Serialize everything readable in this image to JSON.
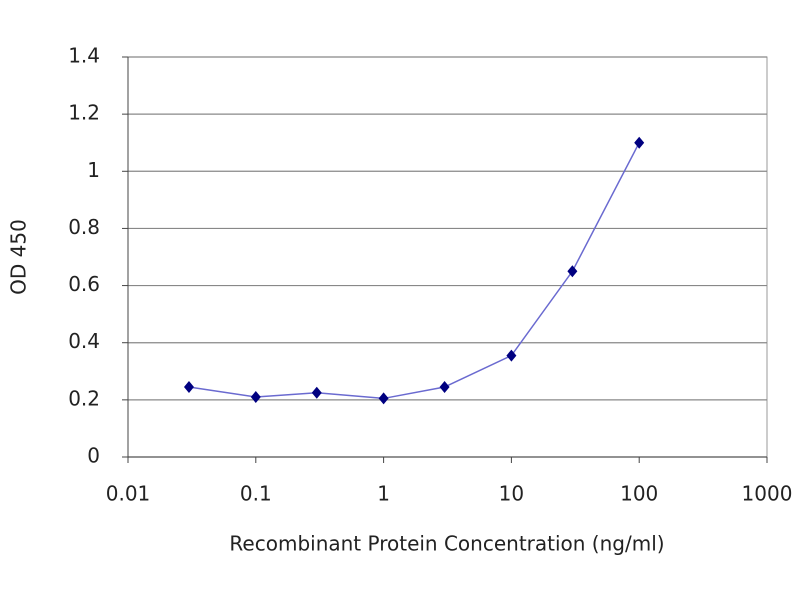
{
  "chart_data": {
    "type": "line",
    "x_label": "Recombinant Protein Concentration (ng/ml)",
    "y_label": "OD 450",
    "x": [
      0.03,
      0.1,
      0.3,
      1,
      3,
      10,
      30,
      100
    ],
    "series": [
      {
        "color": "#6a6ad0",
        "marker_color": "#000080",
        "values": [
          0.245,
          0.21,
          0.225,
          0.205,
          0.245,
          0.355,
          0.65,
          1.1
        ]
      }
    ],
    "x_log": true,
    "xlim": [
      0.01,
      1000
    ],
    "xticks": [
      0.01,
      0.1,
      1,
      10,
      100,
      1000
    ],
    "ylim": [
      0,
      1.4
    ],
    "yticks": [
      0,
      0.2,
      0.4,
      0.6,
      0.8,
      1,
      1.2,
      1.4
    ],
    "grid": true
  }
}
